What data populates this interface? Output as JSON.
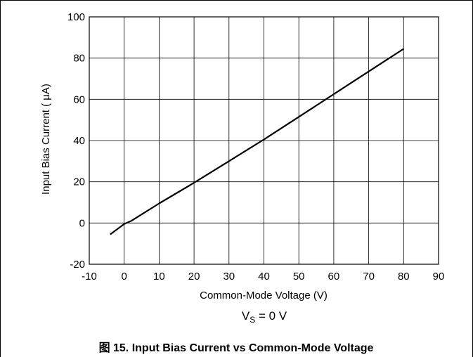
{
  "chart_data": {
    "type": "line",
    "title": "",
    "xlabel": "Common-Mode Voltage (V)",
    "ylabel": "Input Bias Current ( µA)",
    "xlim": [
      -10,
      90
    ],
    "ylim": [
      -20,
      100
    ],
    "x_ticks": [
      "-10",
      "0",
      "10",
      "20",
      "30",
      "40",
      "50",
      "60",
      "70",
      "80",
      "90"
    ],
    "y_ticks": [
      "100",
      "80",
      "60",
      "40",
      "20",
      "0",
      "-20"
    ],
    "grid": true,
    "series": [
      {
        "x": [
          -4,
          -2,
          0,
          2,
          10,
          20,
          30,
          40,
          50,
          60,
          70,
          80
        ],
        "y": [
          -5.5,
          -3,
          -0.5,
          1,
          9.5,
          19.5,
          30,
          40.5,
          51.5,
          62.5,
          73.5,
          84.5
        ]
      }
    ],
    "condition": {
      "prefix": "V",
      "subscript": "S",
      "suffix": " = 0 V"
    },
    "caption": "图 15. Input Bias Current vs Common-Mode Voltage",
    "colors": {
      "line": "#000000",
      "grid": "#000000",
      "background": "#ffffff"
    }
  }
}
